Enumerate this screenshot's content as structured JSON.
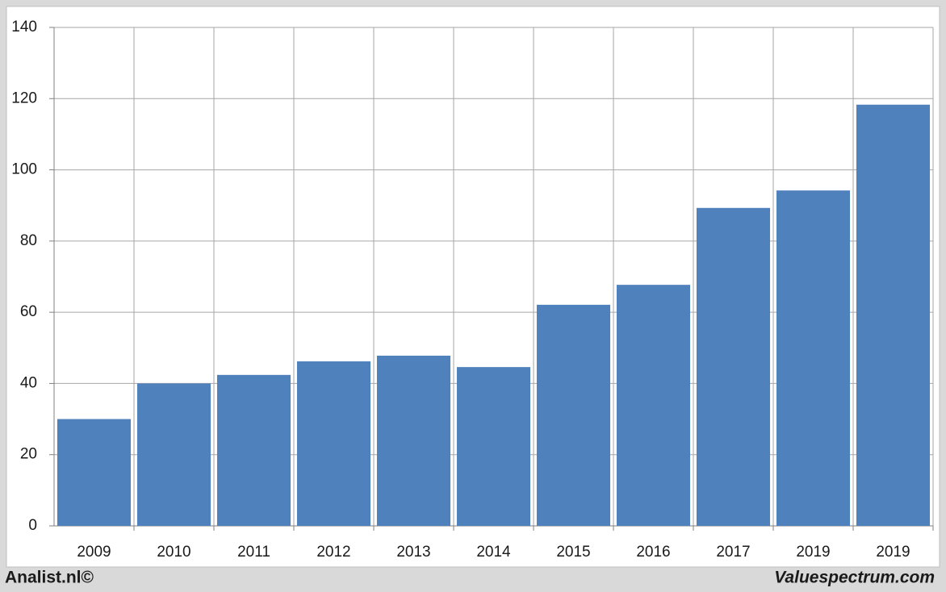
{
  "chart_data": {
    "type": "bar",
    "categories": [
      "2009",
      "2010",
      "2011",
      "2012",
      "2013",
      "2014",
      "2015",
      "2016",
      "2017",
      "2019",
      "2019"
    ],
    "values": [
      30,
      40,
      42.4,
      46.2,
      47.8,
      44.6,
      62.1,
      67.7,
      89.3,
      94.2,
      118.3
    ],
    "color": "#4f81bd",
    "ylim": [
      0,
      140
    ],
    "yticks": [
      0,
      20,
      40,
      60,
      80,
      100,
      120,
      140
    ],
    "grid": true,
    "footer_left": "Analist.nl©",
    "footer_right": "Valuespectrum.com"
  }
}
